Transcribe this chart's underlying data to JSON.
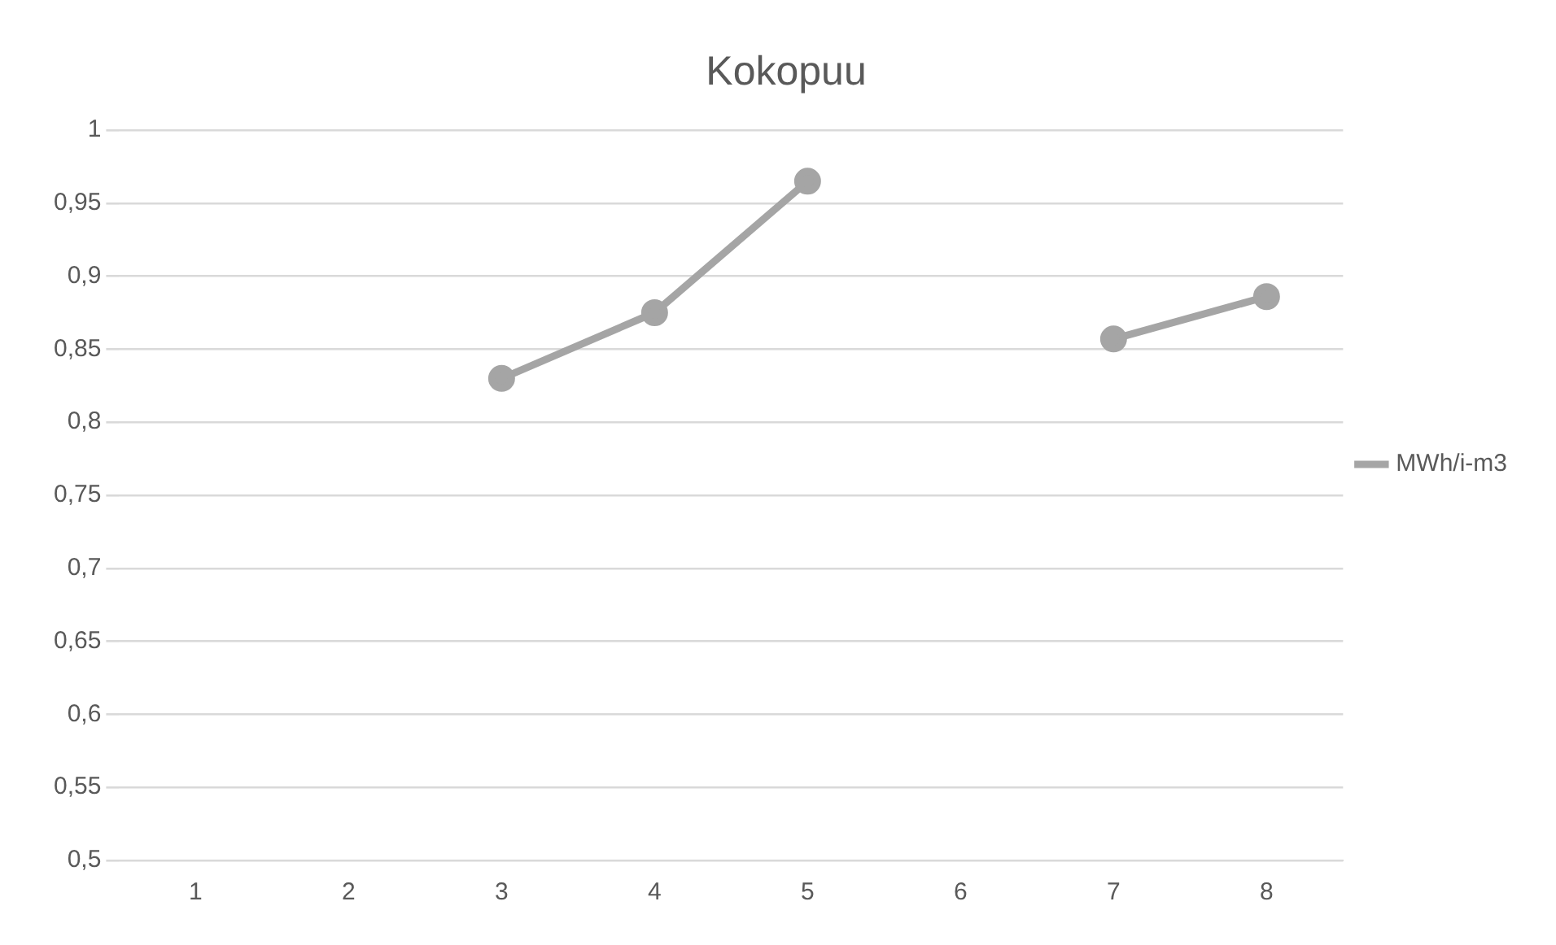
{
  "chart_data": {
    "type": "line",
    "title": "Kokopuu",
    "categories": [
      "1",
      "2",
      "3",
      "4",
      "5",
      "6",
      "7",
      "8"
    ],
    "series": [
      {
        "name": "MWh/i-m3",
        "color": "#a5a5a5",
        "values": [
          null,
          null,
          0.83,
          0.875,
          0.965,
          null,
          0.857,
          0.886
        ]
      }
    ],
    "ylim": [
      0.5,
      1
    ],
    "yticks": [
      {
        "value": 0.5,
        "label": "0,5"
      },
      {
        "value": 0.55,
        "label": "0,55"
      },
      {
        "value": 0.6,
        "label": "0,6"
      },
      {
        "value": 0.65,
        "label": "0,65"
      },
      {
        "value": 0.7,
        "label": "0,7"
      },
      {
        "value": 0.75,
        "label": "0,75"
      },
      {
        "value": 0.8,
        "label": "0,8"
      },
      {
        "value": 0.85,
        "label": "0,85"
      },
      {
        "value": 0.9,
        "label": "0,9"
      },
      {
        "value": 0.95,
        "label": "0,95"
      },
      {
        "value": 1,
        "label": "1"
      }
    ],
    "grid": "y",
    "legend": "right",
    "marker": "circle",
    "line_style": "solid"
  }
}
